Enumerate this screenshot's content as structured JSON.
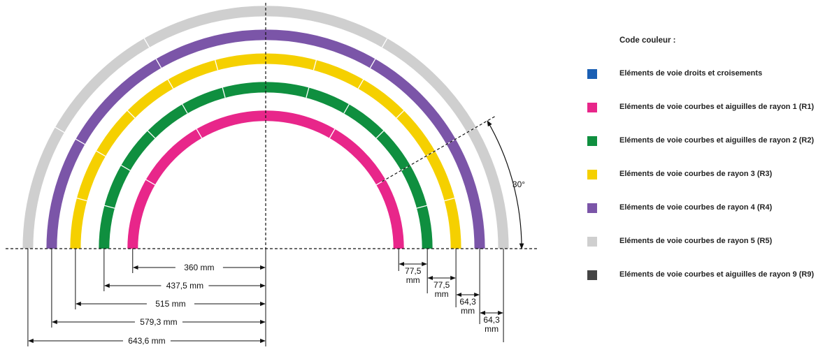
{
  "angle_label": "30°",
  "radii": [
    {
      "id": "R1",
      "mm": 360,
      "color": "#e8268a"
    },
    {
      "id": "R2",
      "mm": 437.5,
      "color": "#0f8f3f"
    },
    {
      "id": "R3",
      "mm": 515,
      "color": "#f5d000"
    },
    {
      "id": "R4",
      "mm": 579.3,
      "color": "#7b55a8"
    },
    {
      "id": "R5",
      "mm": 643.6,
      "color": "#cfcfcf"
    }
  ],
  "radius_labels": [
    "360 mm",
    "437,5 mm",
    "515 mm",
    "579,3 mm",
    "643,6 mm"
  ],
  "spacing_labels": [
    {
      "value": "77,5",
      "unit": "mm"
    },
    {
      "value": "77,5",
      "unit": "mm"
    },
    {
      "value": "64,3",
      "unit": "mm"
    },
    {
      "value": "64,3",
      "unit": "mm"
    }
  ],
  "legend": {
    "title": "Code couleur :",
    "items": [
      {
        "color": "#1a5fb4",
        "label": "Eléments de voie droits et croisements"
      },
      {
        "color": "#e8268a",
        "label": "Eléments de voie courbes et aiguilles de rayon 1 (R1)"
      },
      {
        "color": "#0f8f3f",
        "label": "Eléments de voie courbes et aiguilles de rayon 2 (R2)"
      },
      {
        "color": "#f5d000",
        "label": "Eléments de voie courbes de rayon 3 (R3)"
      },
      {
        "color": "#7b55a8",
        "label": "Eléments de voie courbes de rayon 4 (R4)"
      },
      {
        "color": "#cfcfcf",
        "label": "Eléments de voie courbes de rayon 5 (R5)"
      },
      {
        "color": "#444444",
        "label": "Eléments de voie courbes et aiguilles de rayon 9 (R9)"
      }
    ]
  }
}
